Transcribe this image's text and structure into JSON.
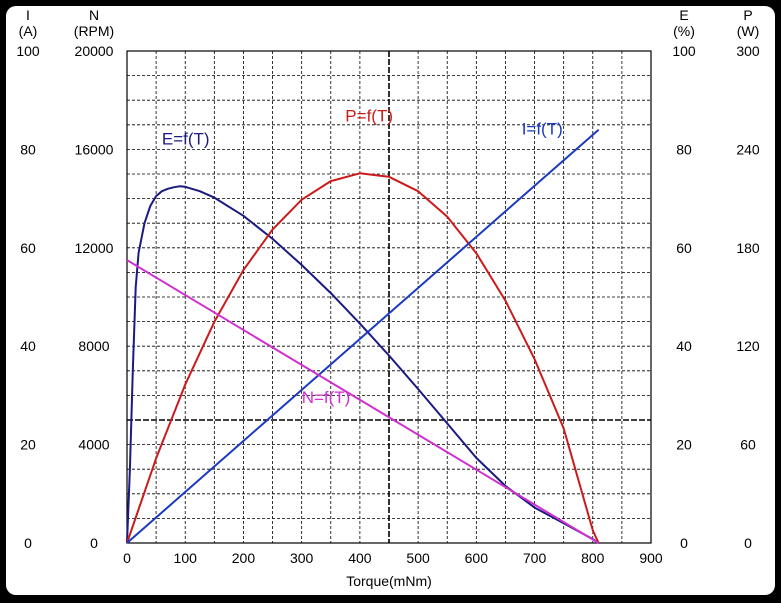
{
  "chart_data": {
    "type": "line",
    "xlabel": "Torque(mNm)",
    "x_ticks": [
      "0",
      "100",
      "200",
      "300",
      "400",
      "500",
      "600",
      "700",
      "800",
      "900"
    ],
    "xlim": [
      0,
      900
    ],
    "grid": true,
    "axes": {
      "I": {
        "symbol": "I",
        "unit": "(A)",
        "range": [
          0,
          100
        ],
        "ticks": [
          "0",
          "20",
          "40",
          "60",
          "80",
          "100"
        ],
        "side": "left"
      },
      "N": {
        "symbol": "N",
        "unit": "(RPM)",
        "range": [
          0,
          20000
        ],
        "ticks": [
          "0",
          "4000",
          "8000",
          "12000",
          "16000",
          "20000"
        ],
        "side": "left"
      },
      "E": {
        "symbol": "E",
        "unit": "(%)",
        "range": [
          0,
          100
        ],
        "ticks": [
          "0",
          "20",
          "40",
          "60",
          "80",
          "100"
        ],
        "side": "right"
      },
      "P": {
        "symbol": "P",
        "unit": "(W)",
        "range": [
          0,
          300
        ],
        "ticks": [
          "0",
          "60",
          "120",
          "180",
          "240",
          "300"
        ],
        "side": "right"
      }
    },
    "series": [
      {
        "name": "E=f(T)",
        "axis": "E",
        "color": "#1a1a80",
        "x": [
          0,
          5,
          10,
          15,
          20,
          30,
          40,
          50,
          60,
          70,
          80,
          90,
          100,
          125,
          150,
          200,
          250,
          300,
          350,
          400,
          450,
          500,
          550,
          600,
          650,
          700,
          750,
          800,
          810
        ],
        "y": [
          0,
          15,
          35,
          52,
          59,
          65,
          68.5,
          70.5,
          71.5,
          72,
          72.3,
          72.5,
          72.4,
          71.5,
          70.2,
          66.5,
          61.8,
          56.5,
          50.8,
          44.6,
          38.1,
          31.3,
          24.3,
          17.3,
          11.6,
          7.2,
          4,
          0.8,
          0
        ]
      },
      {
        "name": "P=f(T)",
        "axis": "P",
        "color": "#cc1a1a",
        "x": [
          0,
          50,
          100,
          150,
          200,
          250,
          300,
          350,
          400,
          450,
          500,
          550,
          600,
          650,
          700,
          750,
          800,
          810
        ],
        "y": [
          0,
          51.6,
          96.6,
          134.8,
          166.4,
          191.2,
          209.3,
          220.7,
          225.4,
          223.3,
          214.5,
          199.0,
          176.7,
          147.8,
          112.1,
          69.8,
          7.7,
          0
        ]
      },
      {
        "name": "I=f(T)",
        "axis": "I",
        "color": "#1a3ac0",
        "x": [
          0,
          810
        ],
        "y": [
          0,
          84
        ]
      },
      {
        "name": "N=f(T)",
        "axis": "N",
        "color": "#d030d0",
        "x": [
          0,
          810
        ],
        "y": [
          11500,
          0
        ]
      }
    ]
  }
}
